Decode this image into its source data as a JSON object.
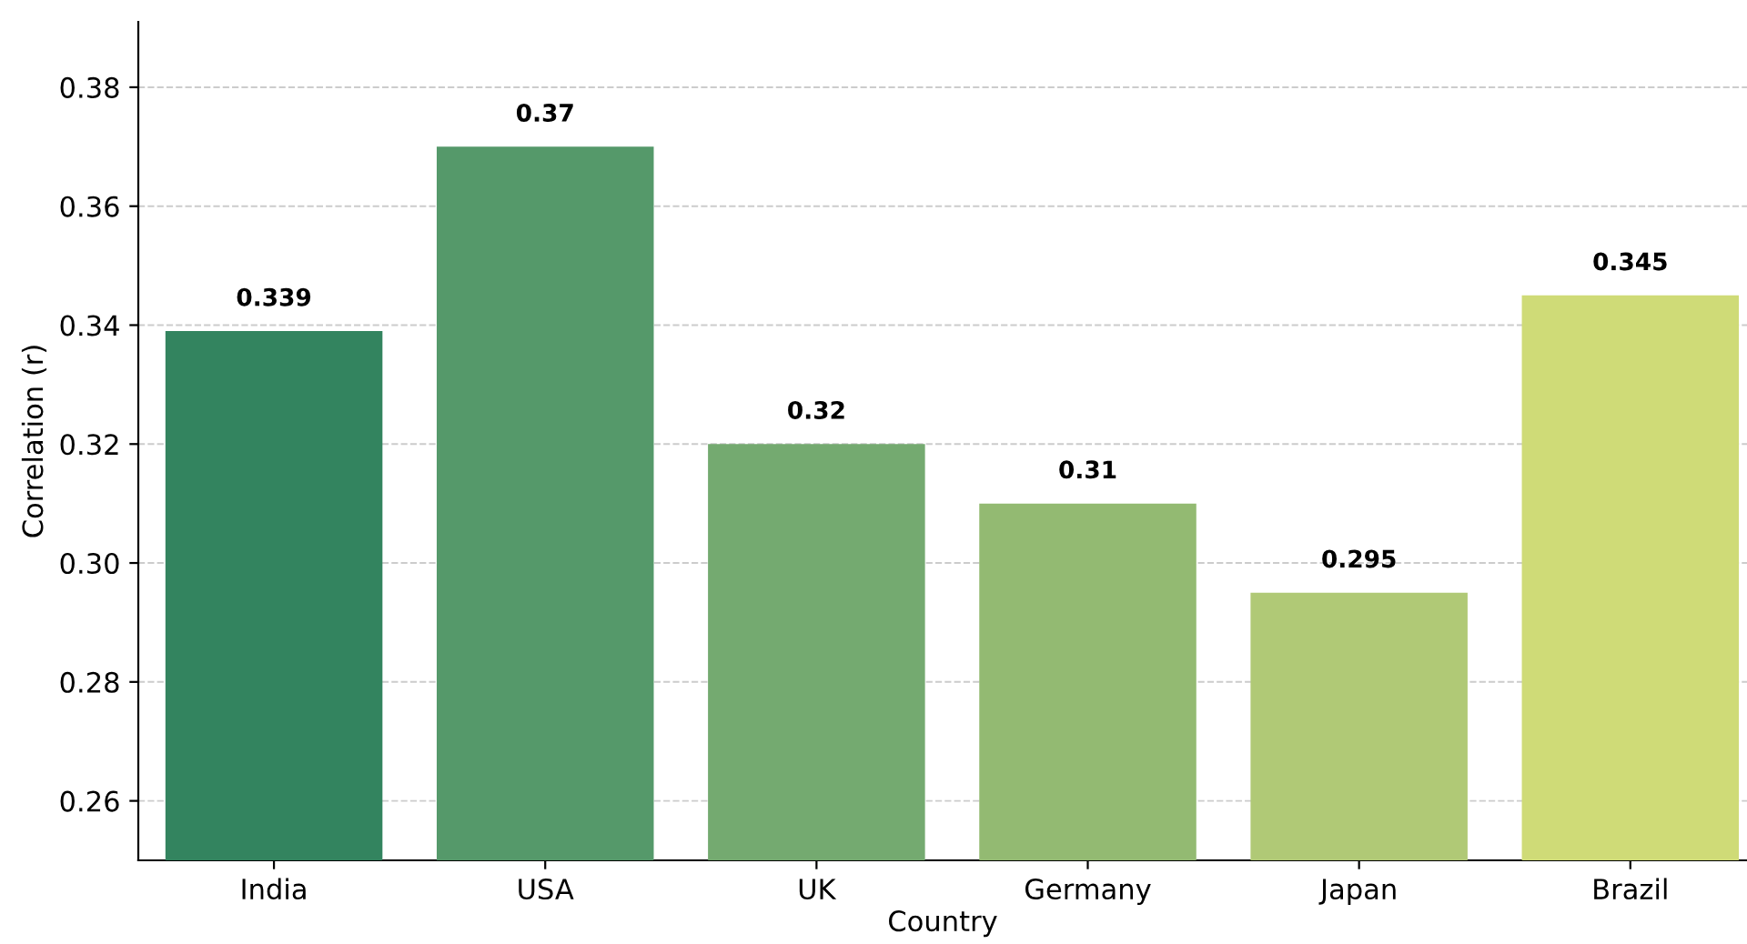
{
  "chart_data": {
    "type": "bar",
    "xlabel": "Country",
    "ylabel": "Correlation (r)",
    "categories": [
      "India",
      "USA",
      "UK",
      "Germany",
      "Japan",
      "Brazil"
    ],
    "values": [
      0.339,
      0.37,
      0.32,
      0.31,
      0.295,
      0.345
    ],
    "colors": [
      "#33845f",
      "#55996a",
      "#74aa70",
      "#93ba72",
      "#b0c976",
      "#cfdb77"
    ],
    "ylim": [
      0.25,
      0.391
    ],
    "yticks": [
      0.26,
      0.28,
      {
        "value": 0.3,
        "label": "0.30"
      },
      0.32,
      0.34,
      0.36,
      0.38
    ],
    "grid": "y",
    "data_labels": true
  }
}
